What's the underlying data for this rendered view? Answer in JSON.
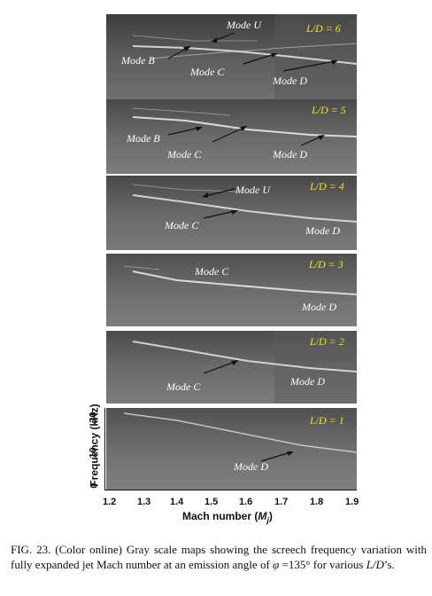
{
  "figure": {
    "panels": [
      {
        "ld": "L/D = 6",
        "labels": [
          "Mode U",
          "Mode B",
          "Mode C",
          "Mode D"
        ]
      },
      {
        "ld": "L/D = 5",
        "labels": [
          "Mode B",
          "Mode C",
          "Mode D"
        ]
      },
      {
        "ld": "L/D = 4",
        "labels": [
          "Mode U",
          "Mode C",
          "Mode D"
        ]
      },
      {
        "ld": "L/D = 3",
        "labels": [
          "Mode C",
          "Mode D"
        ]
      },
      {
        "ld": "L/D = 2",
        "labels": [
          "Mode C",
          "Mode D"
        ]
      },
      {
        "ld": "L/D = 1",
        "labels": [
          "Mode D"
        ]
      }
    ],
    "x_ticks": [
      "1.2",
      "1.3",
      "1.4",
      "1.5",
      "1.6",
      "1.7",
      "1.8",
      "1.9"
    ],
    "y_ticks": [
      "0",
      "10",
      "20"
    ],
    "xlabel_prefix": "Mach number (",
    "xlabel_symbol": "M",
    "xlabel_sub": "j",
    "xlabel_suffix": ")",
    "ylabel": "Frequency (kHz)",
    "colors": {
      "label_text": "#ffffff",
      "ld_text": "#f2e418",
      "panel_bg": "#5a5a5a"
    }
  },
  "caption": {
    "lead": "FIG. 23. (Color online) Gray scale maps showing the screech frequency variation with fully expanded jet Mach number at an emission angle of ",
    "phi": "φ",
    "mid": " =135° for various ",
    "ld": "L/D",
    "tail": "’s."
  }
}
